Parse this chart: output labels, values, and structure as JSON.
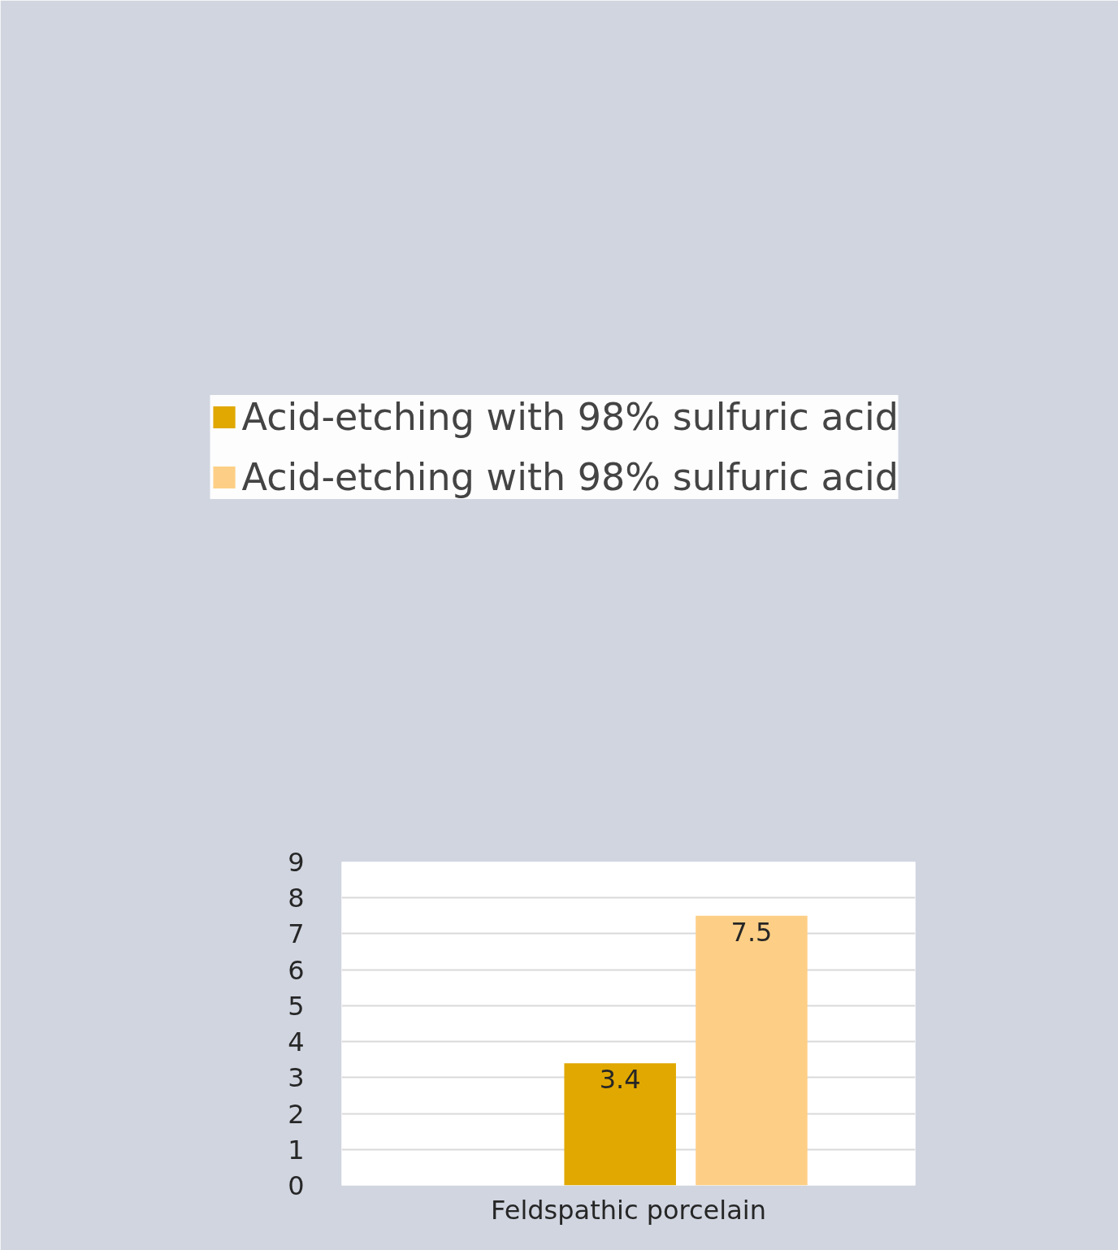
{
  "chart_data": {
    "type": "bar",
    "categories": [
      "Feldspathic porcelain"
    ],
    "series": [
      {
        "name": "Acid-etching with 98% sulfuric acid",
        "color": "#e0a800",
        "values": [
          3.4
        ]
      },
      {
        "name": "Acid-etching with 98% sulfuric acid",
        "color": "#fdcf86",
        "values": [
          7.5
        ]
      }
    ],
    "ylim": [
      0,
      9
    ],
    "yticks": [
      0,
      1,
      2,
      3,
      4,
      5,
      6,
      7,
      8,
      9
    ],
    "grid": "y",
    "data_labels": true,
    "legend": "top"
  }
}
